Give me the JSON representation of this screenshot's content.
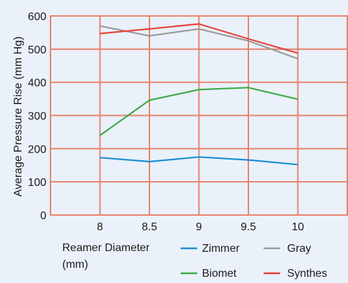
{
  "chart_data": {
    "type": "line",
    "x": [
      8,
      8.5,
      9,
      9.5,
      10
    ],
    "x_tick_labels": [
      "8",
      "8.5",
      "9",
      "9.5",
      "10"
    ],
    "xlabel": "Reamer Diameter (mm)",
    "xlabel_lines": [
      "Reamer Diameter",
      "(mm)"
    ],
    "ylabel": "Average Pressure Rise (mm Hg)",
    "ylim": [
      0,
      600
    ],
    "xlim": [
      7.5,
      10.5
    ],
    "y_ticks": [
      0,
      100,
      200,
      300,
      400,
      500,
      600
    ],
    "y_tick_labels": [
      "0",
      "100",
      "200",
      "300",
      "400",
      "500",
      "600"
    ],
    "grid": true,
    "legend_position": "bottom",
    "series": [
      {
        "name": "Zimmer",
        "color": "#1a8fd0",
        "values": [
          173,
          161,
          175,
          166,
          152
        ]
      },
      {
        "name": "Biomet",
        "color": "#3daa48",
        "values": [
          240,
          346,
          378,
          384,
          349
        ]
      },
      {
        "name": "Gray",
        "color": "#9a9a9a",
        "values": [
          570,
          540,
          561,
          525,
          471
        ]
      },
      {
        "name": "Synthes",
        "color": "#e8423a",
        "values": [
          547,
          561,
          576,
          531,
          488
        ]
      }
    ],
    "colors": {
      "background": "#eaf1fa",
      "grid": "#e8826a",
      "text": "#1a1a1a"
    }
  }
}
